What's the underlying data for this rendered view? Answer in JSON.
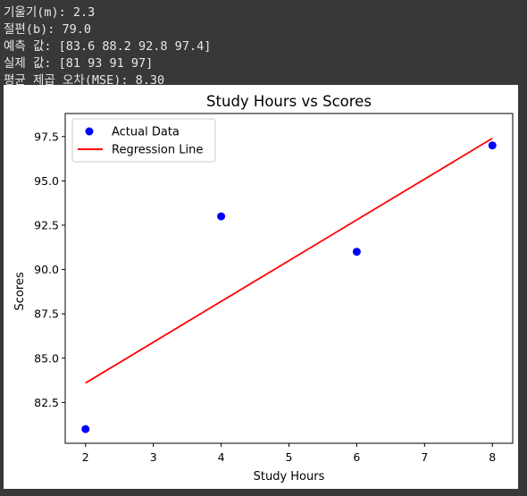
{
  "console": {
    "lines": [
      "기울기(m): 2.3",
      "절편(b): 79.0",
      "예측 값: [83.6 88.2 92.8 97.4]",
      "실제 값: [81 93 91 97]",
      "평균 제곱 오차(MSE): 8.30"
    ]
  },
  "colors": {
    "background": "#383838",
    "console_text": "#e8e8e8",
    "actual_points": "#0000ff",
    "regression_line": "#ff0000"
  },
  "chart_data": {
    "type": "scatter",
    "title": "Study Hours vs Scores",
    "xlabel": "Study Hours",
    "ylabel": "Scores",
    "xlim": [
      1.7,
      8.3
    ],
    "ylim": [
      80.2,
      98.8
    ],
    "xticks": [
      2,
      3,
      4,
      5,
      6,
      7,
      8
    ],
    "xtick_labels": [
      "2",
      "3",
      "4",
      "5",
      "6",
      "7",
      "8"
    ],
    "yticks": [
      82.5,
      85.0,
      87.5,
      90.0,
      92.5,
      95.0,
      97.5
    ],
    "ytick_labels": [
      "82.5",
      "85.0",
      "87.5",
      "90.0",
      "92.5",
      "95.0",
      "97.5"
    ],
    "grid": false,
    "legend_position": "top-left",
    "series": [
      {
        "name": "Actual Data",
        "kind": "scatter",
        "color": "#0000ff",
        "x": [
          2,
          4,
          6,
          8
        ],
        "y": [
          81,
          93,
          91,
          97
        ]
      },
      {
        "name": "Regression Line",
        "kind": "line",
        "color": "#ff0000",
        "x": [
          2,
          4,
          6,
          8
        ],
        "y": [
          83.6,
          88.2,
          92.8,
          97.4
        ]
      }
    ]
  }
}
